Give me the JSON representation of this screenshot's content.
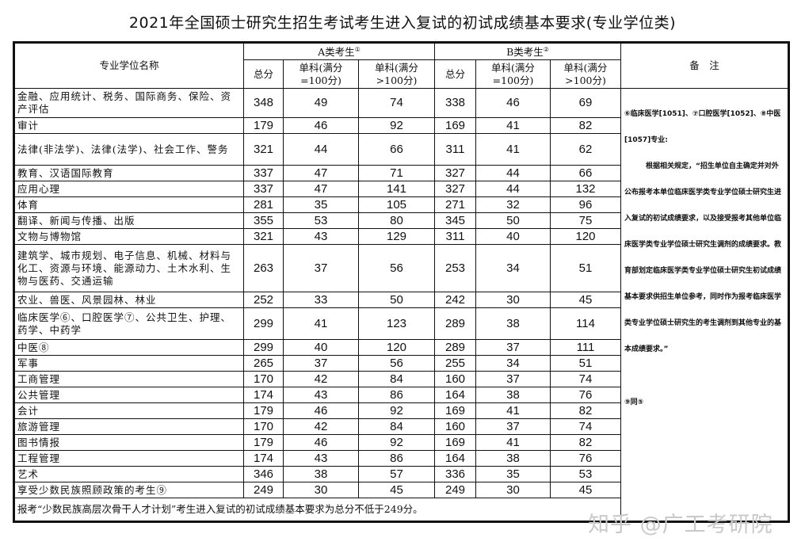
{
  "title": "2021年全国硕士研究生招生考试考生进入复试的初试成绩基本要求(专业学位类)",
  "header": {
    "name": "专业学位名称",
    "group_a": "A类考生",
    "group_a_sup": "①",
    "group_b": "B类考生",
    "group_b_sup": "②",
    "total": "总分",
    "single_100_l1": "单科(满分",
    "single_100_l2": "=100分)",
    "single_over_l1": "单科(满分",
    "single_over_l2": ">100分)",
    "notes": "备　注"
  },
  "rows": [
    {
      "name": "金融、应用统计、税务、国际商务、保险、资产评估",
      "a": [
        348,
        49,
        74
      ],
      "b": [
        338,
        46,
        69
      ],
      "h": 37
    },
    {
      "name": "审计",
      "a": [
        179,
        46,
        92
      ],
      "b": [
        169,
        41,
        82
      ],
      "h": 20
    },
    {
      "name": "法律(非法学)、法律(法学)、社会工作、警务",
      "a": [
        321,
        44,
        66
      ],
      "b": [
        311,
        41,
        62
      ],
      "h": 40
    },
    {
      "name": "教育、汉语国际教育",
      "a": [
        337,
        47,
        71
      ],
      "b": [
        327,
        44,
        66
      ],
      "h": 20
    },
    {
      "name": "应用心理",
      "a": [
        337,
        47,
        141
      ],
      "b": [
        327,
        44,
        132
      ],
      "h": 20
    },
    {
      "name": "体育",
      "a": [
        281,
        35,
        105
      ],
      "b": [
        271,
        32,
        96
      ],
      "h": 20
    },
    {
      "name": "翻译、新闻与传播、出版",
      "a": [
        355,
        53,
        80
      ],
      "b": [
        345,
        50,
        75
      ],
      "h": 20
    },
    {
      "name": "文物与博物馆",
      "a": [
        321,
        43,
        129
      ],
      "b": [
        311,
        40,
        120
      ],
      "h": 20
    },
    {
      "name": "建筑学、城市规划、电子信息、机械、材料与化工、资源与环境、能源动力、土木水利、生物与医药、交通运输",
      "a": [
        263,
        37,
        56
      ],
      "b": [
        253,
        34,
        51
      ],
      "h": 60
    },
    {
      "name": "农业、兽医、风景园林、林业",
      "a": [
        252,
        33,
        50
      ],
      "b": [
        242,
        30,
        45
      ],
      "h": 20
    },
    {
      "name": "临床医学⑥、口腔医学⑦、公共卫生、护理、药学、中药学",
      "a": [
        299,
        41,
        123
      ],
      "b": [
        289,
        38,
        114
      ],
      "h": 40
    },
    {
      "name": "中医⑧",
      "a": [
        299,
        40,
        120
      ],
      "b": [
        289,
        37,
        111
      ],
      "h": 20
    },
    {
      "name": "军事",
      "a": [
        265,
        37,
        56
      ],
      "b": [
        255,
        34,
        51
      ],
      "h": 20
    },
    {
      "name": "工商管理",
      "a": [
        170,
        42,
        84
      ],
      "b": [
        160,
        37,
        74
      ],
      "h": 20
    },
    {
      "name": "公共管理",
      "a": [
        174,
        43,
        86
      ],
      "b": [
        164,
        38,
        76
      ],
      "h": 20
    },
    {
      "name": "会计",
      "a": [
        179,
        46,
        92
      ],
      "b": [
        169,
        41,
        82
      ],
      "h": 20
    },
    {
      "name": "旅游管理",
      "a": [
        170,
        42,
        84
      ],
      "b": [
        160,
        37,
        74
      ],
      "h": 20
    },
    {
      "name": "图书情报",
      "a": [
        179,
        46,
        92
      ],
      "b": [
        169,
        41,
        82
      ],
      "h": 20
    },
    {
      "name": "工程管理",
      "a": [
        174,
        43,
        86
      ],
      "b": [
        164,
        38,
        76
      ],
      "h": 20
    },
    {
      "name": "艺术",
      "a": [
        346,
        38,
        57
      ],
      "b": [
        336,
        35,
        53
      ],
      "h": 20
    },
    {
      "name": "享受少数民族照顾政策的考生⑨",
      "a": [
        249,
        30,
        45
      ],
      "b": [
        249,
        30,
        45
      ],
      "h": 20
    }
  ],
  "notes": {
    "p1": "⑥临床医学[1051]、⑦口腔医学[1052]、⑧中医[1057]专业:",
    "p2": "根据相关规定，“招生单位自主确定并对外公布报考本单位临床医学类专业学位硕士研究生进入复试的初试成绩要求，以及接受报考其他单位临床医学类专业学位硕士研究生调剂的成绩要求。教育部划定临床医学类专业学位硕士研究生初试成绩基本要求供招生单位参考，同时作为报考临床医学类专业学位硕士研究生的考生调剂到其他专业的基本成绩要求。”",
    "p3": "⑨同⑤"
  },
  "footer": "报考“少数民族高层次骨干人才计划”考生进入复试的初试成绩基本要求为总分不低于249分。",
  "watermark": "知乎 @广工考研院"
}
